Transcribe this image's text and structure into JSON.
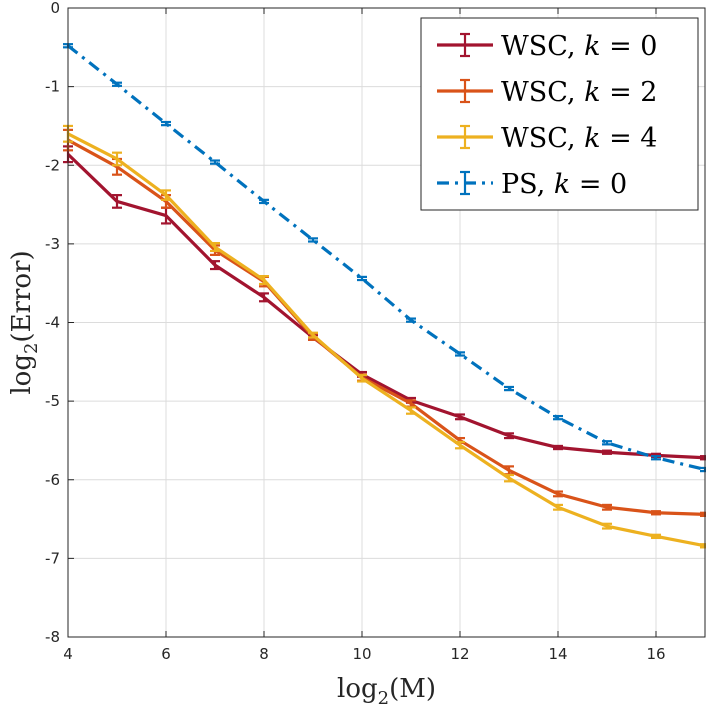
{
  "chart_data": {
    "type": "line",
    "title": "",
    "xlabel_base": "log",
    "xlabel_sub": "2",
    "xlabel_arg": "(M)",
    "ylabel_base": "log",
    "ylabel_sub": "2",
    "ylabel_arg": "(Error)",
    "xlim": [
      4,
      17
    ],
    "ylim": [
      -8,
      0
    ],
    "xticks": [
      4,
      6,
      8,
      10,
      12,
      14,
      16
    ],
    "yticks": [
      0,
      -1,
      -2,
      -3,
      -4,
      -5,
      -6,
      -7,
      -8
    ],
    "xtick_labels": [
      "4",
      "6",
      "8",
      "10",
      "12",
      "14",
      "16"
    ],
    "ytick_labels": [
      "0",
      "-1",
      "-2",
      "-3",
      "-4",
      "-5",
      "-6",
      "-7",
      "-8"
    ],
    "grid": true,
    "legend_position": "top-right",
    "x": [
      4,
      5,
      6,
      7,
      8,
      9,
      10,
      11,
      12,
      13,
      14,
      15,
      16,
      17
    ],
    "series": [
      {
        "name": "WSC, k = 0",
        "legend_prefix": "WSC, ",
        "legend_var": "k",
        "legend_suffix": " = 0",
        "color": "#A2142F",
        "dash": "solid",
        "values": [
          -1.86,
          -2.46,
          -2.64,
          -3.27,
          -3.68,
          -4.19,
          -4.66,
          -4.99,
          -5.2,
          -5.44,
          -5.59,
          -5.65,
          -5.69,
          -5.72
        ],
        "errors": [
          0.1,
          0.08,
          0.1,
          0.05,
          0.05,
          0.03,
          0.03,
          0.03,
          0.03,
          0.03,
          0.02,
          0.02,
          0.02,
          0.02
        ]
      },
      {
        "name": "WSC, k = 2",
        "legend_prefix": "WSC, ",
        "legend_var": "k",
        "legend_suffix": " = 2",
        "color": "#D95319",
        "dash": "solid",
        "values": [
          -1.68,
          -2.02,
          -2.46,
          -3.08,
          -3.48,
          -4.18,
          -4.7,
          -5.03,
          -5.5,
          -5.88,
          -6.18,
          -6.35,
          -6.42,
          -6.44
        ],
        "errors": [
          0.13,
          0.1,
          0.08,
          0.06,
          0.06,
          0.04,
          0.04,
          0.04,
          0.03,
          0.05,
          0.03,
          0.03,
          0.02,
          0.02
        ]
      },
      {
        "name": "WSC, k = 4",
        "legend_prefix": "WSC, ",
        "legend_var": "k",
        "legend_suffix": " = 4",
        "color": "#EDB120",
        "dash": "solid",
        "values": [
          -1.6,
          -1.92,
          -2.38,
          -3.04,
          -3.46,
          -4.16,
          -4.71,
          -5.12,
          -5.56,
          -5.98,
          -6.35,
          -6.59,
          -6.72,
          -6.84
        ],
        "errors": [
          0.1,
          0.08,
          0.06,
          0.05,
          0.05,
          0.03,
          0.04,
          0.04,
          0.04,
          0.04,
          0.03,
          0.03,
          0.02,
          0.02
        ]
      },
      {
        "name": "PS, k = 0",
        "legend_prefix": "PS, ",
        "legend_var": "k",
        "legend_suffix": " = 0",
        "color": "#0072BD",
        "dash": "dashdot",
        "values": [
          -0.48,
          -0.97,
          -1.47,
          -1.96,
          -2.46,
          -2.95,
          -3.44,
          -3.97,
          -4.4,
          -4.84,
          -5.21,
          -5.53,
          -5.72,
          -5.87
        ],
        "errors": [
          0.02,
          0.02,
          0.02,
          0.02,
          0.02,
          0.02,
          0.02,
          0.02,
          0.02,
          0.02,
          0.02,
          0.02,
          0.02,
          0.02
        ]
      }
    ]
  }
}
